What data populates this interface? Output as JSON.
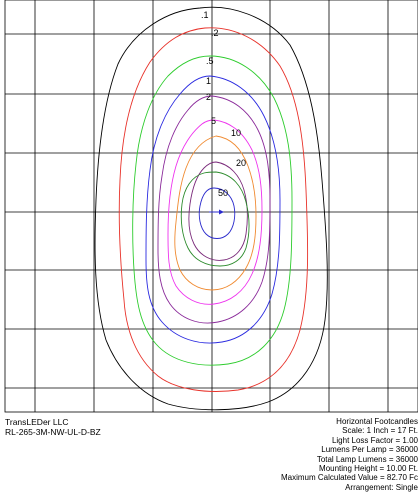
{
  "diagram": {
    "title": "Horizontal Footcandles",
    "contour_labels": [
      ".1",
      ".2",
      ".5",
      "1",
      "2",
      "5",
      "10",
      "20",
      "50"
    ],
    "colors": {
      "grid": "#000000",
      "contour_0_1": "#000000",
      "contour_0_2": "#e8322a",
      "contour_0_5": "#2dcc2d",
      "contour_1": "#2a2ae0",
      "contour_2": "#8a2a9a",
      "contour_5": "#ee33ee",
      "contour_10": "#f08a30",
      "contour_20": "#7a2a7a",
      "contour_50": "#2a8a2a",
      "contour_core": "#2a2acc"
    }
  },
  "footer": {
    "company": "TransLEDer LLC",
    "model": "RL-265-3M-NW-UL-D-BZ",
    "details": [
      "Horizontal Footcandles",
      "Scale: 1 Inch = 17 Ft.",
      "Light Loss Factor = 1.00",
      "Lumens Per Lamp = 36000",
      "Total Lamp Lumens = 36000",
      "Mounting Height = 10.00 Ft.",
      "Maximum Calculated Value = 82.70 Fc",
      "Arrangement: Single"
    ]
  }
}
